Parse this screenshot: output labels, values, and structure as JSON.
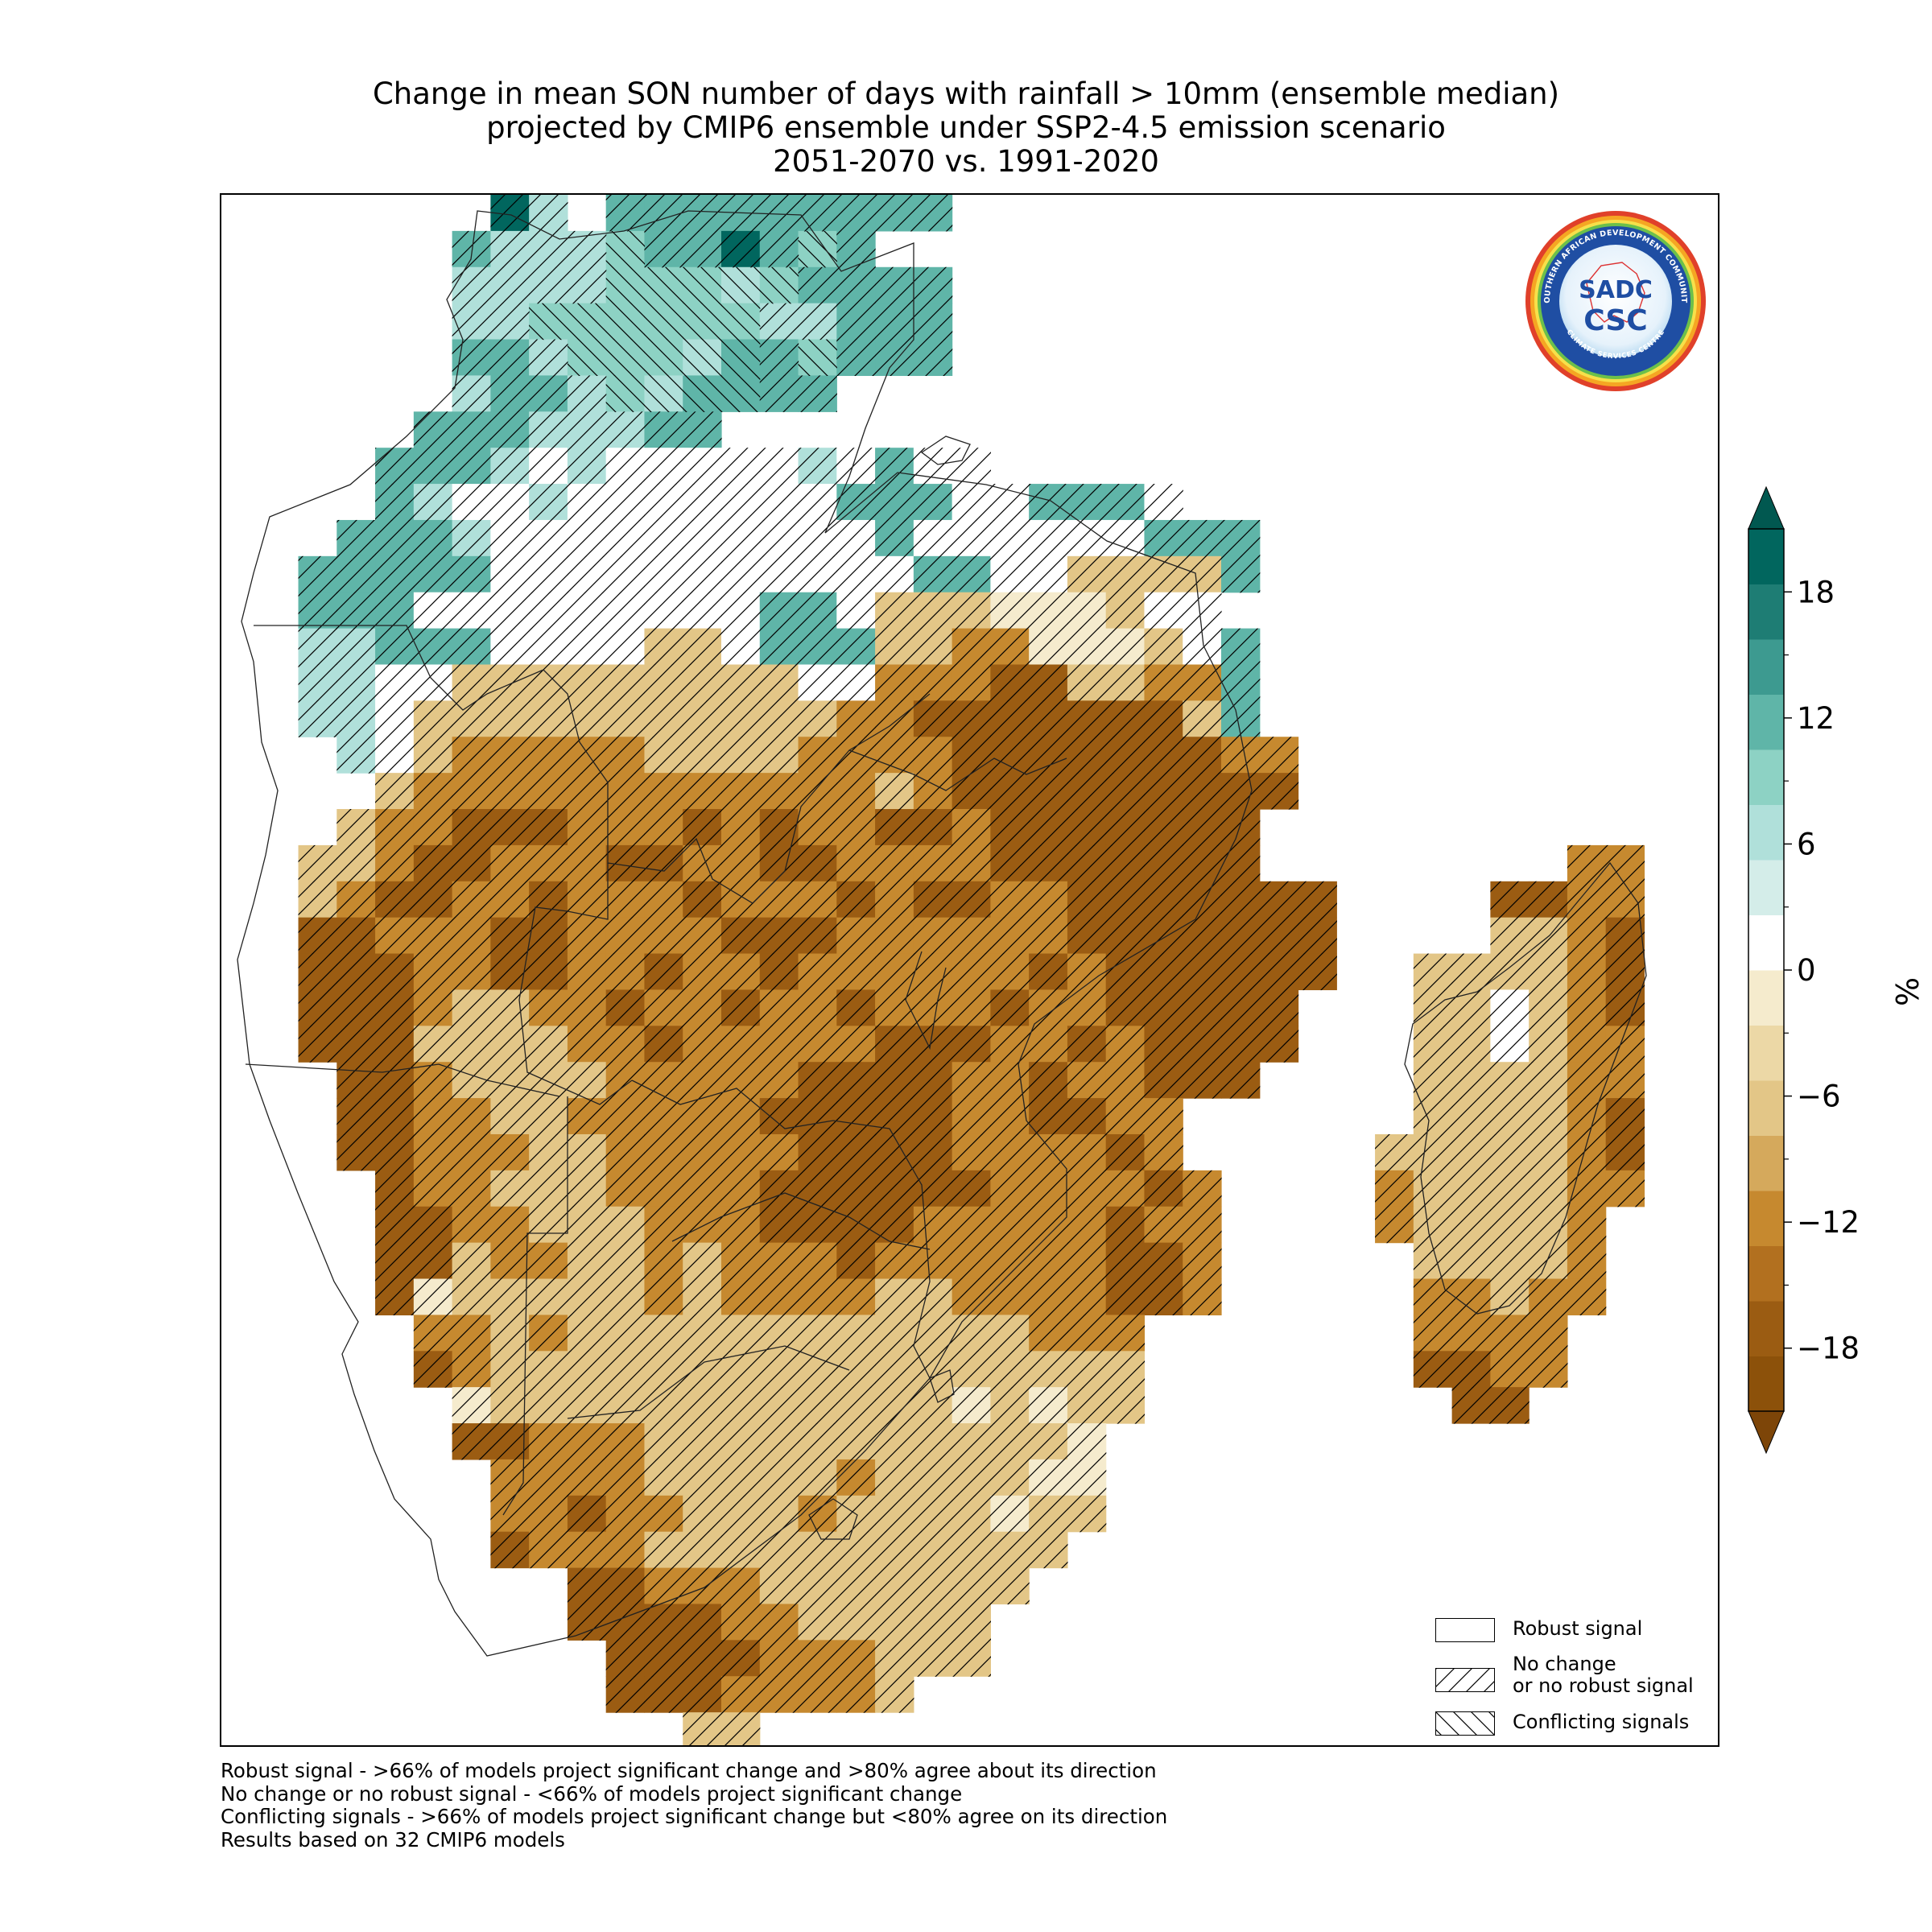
{
  "title": {
    "line1": "Change in mean SON number of days with rainfall > 10mm (ensemble median)",
    "line2": "projected by CMIP6 ensemble under SSP2-4.5 emission scenario",
    "line3": "2051-2070 vs. 1991-2020"
  },
  "colorbar": {
    "label": "%",
    "ticks": [
      "18",
      "12",
      "6",
      "0",
      "−6",
      "−12",
      "−18"
    ],
    "colors": [
      "#8c510a",
      "#9b5c12",
      "#b2701f",
      "#c6892f",
      "#d5a95c",
      "#e3c687",
      "#ecd8a6",
      "#f5ebcd",
      "#ffffff",
      "#d4ede9",
      "#b0e0da",
      "#8dd2c4",
      "#5fb5a8",
      "#3d9a90",
      "#1e7d74",
      "#01665e"
    ],
    "extend_low_color": "#7d4508",
    "extend_high_color": "#015850"
  },
  "legend": {
    "items": [
      {
        "label": "Robust signal",
        "pattern": "none"
      },
      {
        "label": "No change",
        "label2": "or no robust signal",
        "pattern": "forward"
      },
      {
        "label": "Conflicting signals",
        "pattern": "back"
      }
    ]
  },
  "footnotes": [
    "Robust signal - >66% of models project significant change and >80% agree about its direction",
    "No change or no robust signal - <66% of models project significant change",
    "Conflicting signals - >66% of models project significant change but <80% agree on its direction",
    "Results based on 32 CMIP6 models"
  ],
  "logo": {
    "outer_text": "SOUTHERN AFRICAN DEVELOPMENT COMMUNITY",
    "inner_text": "CLIMATE SERVICES CENTRE",
    "mark_top": "SADC",
    "mark_bottom": "CSC"
  },
  "map": {
    "grid_cols": 39,
    "grid_rows": 43,
    "note": "",
    "rows": [
      "_______Tl_ddddddddd____________________",
      "______dlllLddTdLd______________________",
      "______llllLLLlLdddd____________________",
      "______llLLLLLLllddd____________________",
      "______ddlLLLlddLddd____________________",
      "______lddlLldddd_______________________",
      "_____dddllldd__________________________",
      "____dddl0l00000l0d00___________________",
      "____dl00l0000000ddd00ddd0______________",
      "___dddl0000000000d000000ddd____________",
      "__ddddd00000000000dd00qqqqd____________",
      "__ddd000000000dd0qqqpppq00_____________",
      "__llddd0000qq0dddqqrrpppq0d____________",
      "__ll00qqqqqqqqq00rrrssqqrrd____________",
      "__ll0qqqqqqqqqqqrrsssssssqd____________",
      "___l0qrrrrrqqqqrrrrsssssssrr___________",
      "____qrrrrrrrrrrrrqrsssssssss___________",
      "___qrrsssrrrsrsrrssrsssssss____________",
      "__qqrssrrrssrrssrrrrsssssss________rr__",
      "__qrssrrsrrrsrrrsrssrrsssssss____ssrr__",
      "__ssrrrssrrrrsssrrrrrrsssssss____qqrs__",
      "__sssrrssrrsrrsrrrrrrsrssssss__qqqqrs__",
      "__sssrqqrrsrrsrrsrrrsrrsssss___qq0qrs__",
      "__sssqqqqrrsrrrrrsssrrsrssss___qq0qrr__",
      "___ssrqqqqrrrrrssssrrsrrsss____qqqqrr__",
      "___ssrrqqrrrrrsssssrrssrr______qqqqrs__",
      "___ssrrrqqrrrrrssssrrrrsr_____qqqqqrs__",
      "____srrqqqrrrrssssssrrrrsr____rqqqqrr__",
      "____ssrrqqqrrrssssrrrrrsrr____rqqqqr___",
      "____ssqrrqqrqrrrsrrrrrrssr_____qqqqr___",
      "____spqqqqqrqrrrrqqrrrrssr_____rrqrr___",
      "_____rrqrqqqqqqqqqqqqrrr_______rrrr____",
      "_____srqqqqqqqqqqqqqqqqq_______ssrr____",
      "______pqqqqqqqqqqqqpqpqq________ss_____",
      "______ssrrrqqqqqqqqqqqp________________",
      "_______rrrrqqqqqrqqqqpp________________",
      "_______rrsrrqqqrqqqqpqq________________",
      "_______srrrqqqqqqqqqqq_________________",
      "_________ssrrrqqqqqqq__________________",
      "_________ssssrrqqqqq___________________",
      "__________ssssrrrqqq___________________",
      "__________sssrrrrq_____________________",
      "____________qq_________________________"
    ]
  }
}
